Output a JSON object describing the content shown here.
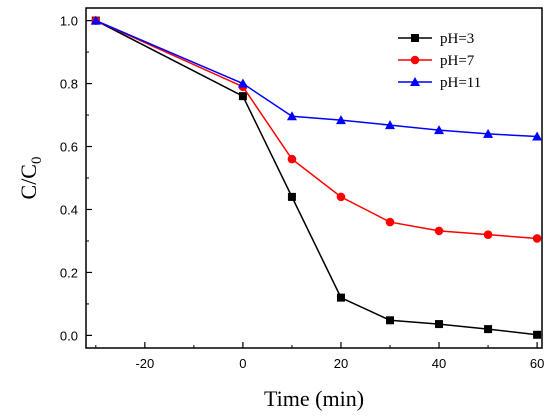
{
  "chart_data": {
    "type": "line",
    "title": "",
    "xlabel": "Time (min)",
    "ylabel_main": "C/C",
    "ylabel_sub": "0",
    "xlim": [
      -32,
      61
    ],
    "ylim": [
      -0.04,
      1.04
    ],
    "xticks": [
      -20,
      0,
      20,
      40,
      60
    ],
    "yticks": [
      0.0,
      0.2,
      0.4,
      0.6,
      0.8,
      1.0
    ],
    "ytick_labels": [
      "0.0",
      "0.2",
      "0.4",
      "0.6",
      "0.8",
      "1.0"
    ],
    "x": [
      -30,
      0,
      10,
      20,
      30,
      40,
      50,
      60
    ],
    "legend_position": "top-right",
    "grid": false,
    "series": [
      {
        "name": "pH=3",
        "color": "#000000",
        "marker": "square",
        "values": [
          1.0,
          0.76,
          0.44,
          0.12,
          0.048,
          0.036,
          0.02,
          0.002
        ]
      },
      {
        "name": "pH=7",
        "color": "#ff0000",
        "marker": "circle",
        "values": [
          1.0,
          0.79,
          0.56,
          0.44,
          0.36,
          0.332,
          0.32,
          0.308
        ]
      },
      {
        "name": "pH=11",
        "color": "#0000ff",
        "marker": "triangle",
        "values": [
          1.0,
          0.8,
          0.696,
          0.684,
          0.668,
          0.652,
          0.64,
          0.632
        ]
      }
    ]
  }
}
